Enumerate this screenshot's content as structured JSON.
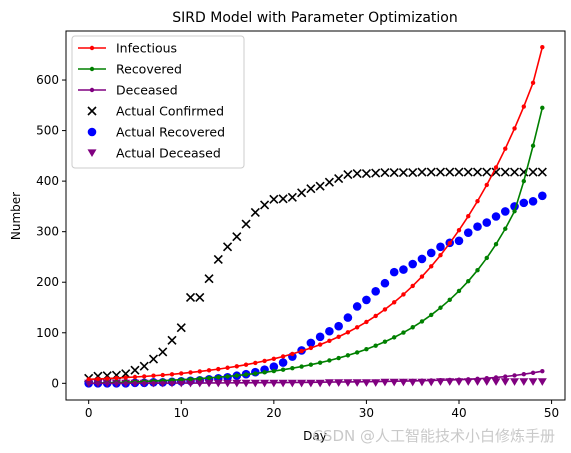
{
  "chart_data": {
    "type": "line",
    "title": "SIRD Model with Parameter Optimization",
    "xlabel": "Day",
    "ylabel": "Number",
    "xlim": [
      -2.45,
      51.45
    ],
    "ylim": [
      -33,
      697
    ],
    "xticks": [
      0,
      10,
      20,
      30,
      40,
      50
    ],
    "yticks": [
      0,
      100,
      200,
      300,
      400,
      500,
      600
    ],
    "grid": false,
    "legend_position": "top-left",
    "x": [
      0,
      1,
      2,
      3,
      4,
      5,
      6,
      7,
      8,
      9,
      10,
      11,
      12,
      13,
      14,
      15,
      16,
      17,
      18,
      19,
      20,
      21,
      22,
      23,
      24,
      25,
      26,
      27,
      28,
      29,
      30,
      31,
      32,
      33,
      34,
      35,
      36,
      37,
      38,
      39,
      40,
      41,
      42,
      43,
      44,
      45,
      46,
      47,
      48,
      49
    ],
    "series": [
      {
        "name": "Infectious",
        "kind": "line",
        "color": "#ff0000",
        "values": [
          8.0,
          8.7,
          9.5,
          10.4,
          11.4,
          12.5,
          13.7,
          15.0,
          16.4,
          17.9,
          19.6,
          21.5,
          23.5,
          25.7,
          28.1,
          30.8,
          33.7,
          36.9,
          40.4,
          44.3,
          48.5,
          53.1,
          58.2,
          63.8,
          69.9,
          76.6,
          84.0,
          92.1,
          101.0,
          110.8,
          121.5,
          133.3,
          146.2,
          160.3,
          175.8,
          192.7,
          211.2,
          231.4,
          253.4,
          277.2,
          302.9,
          330.6,
          360.4,
          392.5,
          427.0,
          464.2,
          504.3,
          547.6,
          594.5,
          665.0
        ]
      },
      {
        "name": "Recovered",
        "kind": "line",
        "color": "#008000",
        "values": [
          0.0,
          0.5,
          1.0,
          1.6,
          2.2,
          2.9,
          3.6,
          4.4,
          5.2,
          6.1,
          7.1,
          8.2,
          9.4,
          10.7,
          12.1,
          13.7,
          15.4,
          17.3,
          19.4,
          21.7,
          24.2,
          26.9,
          29.9,
          33.2,
          36.8,
          40.8,
          45.2,
          50.0,
          55.3,
          61.1,
          67.5,
          74.5,
          82.3,
          90.9,
          100.4,
          110.9,
          122.5,
          135.3,
          149.5,
          165.2,
          182.7,
          202.1,
          223.8,
          248.0,
          275.2,
          305.8,
          340.4,
          400.0,
          470.0,
          545.0
        ]
      },
      {
        "name": "Deceased",
        "kind": "line",
        "color": "#800080",
        "values": [
          0.0,
          0.0,
          0.1,
          0.1,
          0.1,
          0.2,
          0.2,
          0.3,
          0.3,
          0.4,
          0.5,
          0.5,
          0.6,
          0.7,
          0.8,
          0.9,
          1.0,
          1.1,
          1.2,
          1.3,
          1.4,
          1.5,
          1.7,
          1.8,
          2.0,
          2.2,
          2.4,
          2.6,
          2.8,
          3.0,
          3.3,
          3.5,
          3.8,
          4.1,
          4.4,
          4.8,
          5.2,
          5.6,
          6.1,
          6.6,
          7.2,
          8.0,
          9.0,
          10.2,
          11.7,
          13.4,
          15.5,
          18.0,
          20.8,
          24.0
        ]
      },
      {
        "name": "Actual Confirmed",
        "kind": "scatter",
        "marker": "x",
        "color": "#000000",
        "values": [
          10,
          14,
          15,
          16,
          19,
          26,
          34,
          48,
          62,
          85,
          110,
          170,
          170,
          207,
          245,
          270,
          290,
          315,
          338,
          353,
          364,
          365,
          368,
          377,
          385,
          390,
          398,
          405,
          413,
          415,
          415,
          416,
          417,
          417,
          417,
          417,
          418,
          418,
          418,
          418,
          418,
          418,
          418,
          418,
          418,
          418,
          418,
          418,
          418,
          418
        ]
      },
      {
        "name": "Actual Recovered",
        "kind": "scatter",
        "marker": "o",
        "color": "#0000ff",
        "values": [
          0,
          0,
          0,
          0,
          0,
          1,
          1,
          2,
          2,
          3,
          4,
          5,
          6,
          8,
          10,
          12,
          15,
          18,
          22,
          27,
          33,
          41,
          53,
          65,
          80,
          92,
          103,
          113,
          130,
          152,
          165,
          182,
          198,
          220,
          225,
          236,
          246,
          258,
          270,
          278,
          282,
          298,
          310,
          318,
          330,
          340,
          350,
          357,
          360,
          371
        ]
      },
      {
        "name": "Actual Deceased",
        "kind": "scatter",
        "marker": "v",
        "color": "#800080",
        "values": [
          0,
          0,
          0,
          0,
          0,
          0,
          0,
          0,
          0,
          0,
          0,
          0,
          0,
          0,
          0,
          0,
          0,
          0,
          0,
          0,
          0,
          0,
          0,
          0,
          0,
          0,
          1,
          1,
          1,
          1,
          1,
          1,
          2,
          2,
          2,
          2,
          2,
          2,
          3,
          3,
          3,
          3,
          3,
          3,
          3,
          3,
          3,
          3,
          3,
          3
        ]
      }
    ]
  },
  "watermark": "CSDN @人工智能技术小白修炼手册"
}
